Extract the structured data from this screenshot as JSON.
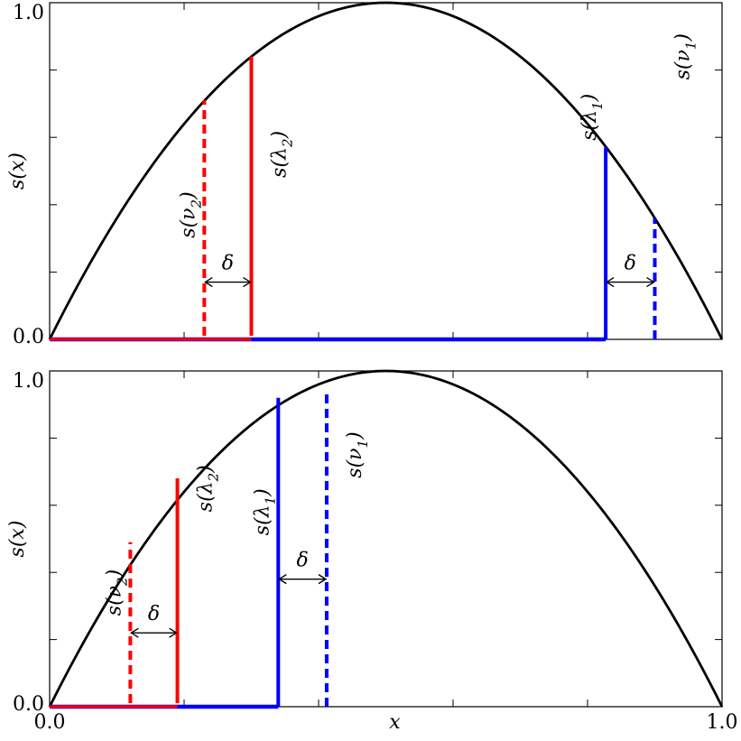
{
  "chart_data": [
    {
      "type": "line",
      "panel": "top",
      "ylabel": "s(x)",
      "xlim": [
        0.0,
        1.0
      ],
      "ylim": [
        0.0,
        1.0
      ],
      "y_tick_labels": [
        "0.0",
        "1.0"
      ],
      "curve": {
        "name": "",
        "function": "4x(1-x)",
        "color": "#000000"
      },
      "segments": [
        {
          "name": "s(λ2)",
          "color": "#ff0000",
          "style": "solid",
          "x": 0.3,
          "height": 0.84
        },
        {
          "name": "s(ν2)",
          "color": "#ff0000",
          "style": "dashed",
          "x": 0.23,
          "height": 0.71
        },
        {
          "name": "s(λ1)",
          "color": "#0000ff",
          "style": "solid",
          "x": 0.827,
          "height": 0.57
        },
        {
          "name": "s(ν1)",
          "color": "#0000ff",
          "style": "dashed",
          "x": 0.9,
          "height": 0.36
        }
      ],
      "baselines": [
        {
          "color": "#ff0000",
          "from": 0.0,
          "to": 0.3
        },
        {
          "color": "#0000ff",
          "from": 0.0,
          "to": 0.827
        }
      ],
      "annotations": [
        {
          "text": "s(λ2)",
          "x": 0.3
        },
        {
          "text": "s(ν2)",
          "x": 0.23
        },
        {
          "text": "s(λ1)",
          "x": 0.827
        },
        {
          "text": "s(ν1)",
          "x": 0.9
        },
        {
          "text": "δ",
          "between": [
            "s(ν2)",
            "s(λ2)"
          ]
        },
        {
          "text": "δ",
          "between": [
            "s(λ1)",
            "s(ν1)"
          ]
        }
      ]
    },
    {
      "type": "line",
      "panel": "bottom",
      "ylabel": "s(x)",
      "xlabel": "x",
      "xlim": [
        0.0,
        1.0
      ],
      "ylim": [
        0.0,
        1.0
      ],
      "x_tick_labels": [
        "0.0",
        "1.0"
      ],
      "y_tick_labels": [
        "0.0",
        "1.0"
      ],
      "curve": {
        "name": "",
        "function": "4x(1-x)",
        "color": "#000000"
      },
      "segments": [
        {
          "name": "s(λ2)",
          "color": "#ff0000",
          "style": "solid",
          "x": 0.19,
          "height": 0.68
        },
        {
          "name": "s(ν2)",
          "color": "#ff0000",
          "style": "dashed",
          "x": 0.12,
          "height": 0.49
        },
        {
          "name": "s(λ1)",
          "color": "#0000ff",
          "style": "solid",
          "x": 0.34,
          "height": 0.92
        },
        {
          "name": "s(ν1)",
          "color": "#0000ff",
          "style": "dashed",
          "x": 0.412,
          "height": 0.94
        }
      ],
      "baselines": [
        {
          "color": "#ff0000",
          "from": 0.0,
          "to": 0.19
        },
        {
          "color": "#0000ff",
          "from": 0.0,
          "to": 0.34
        }
      ],
      "annotations": [
        {
          "text": "s(λ2)",
          "x": 0.19
        },
        {
          "text": "s(ν2)",
          "x": 0.12
        },
        {
          "text": "s(λ1)",
          "x": 0.34
        },
        {
          "text": "s(ν1)",
          "x": 0.412
        },
        {
          "text": "δ",
          "between": [
            "s(ν2)",
            "s(λ2)"
          ]
        },
        {
          "text": "δ",
          "between": [
            "s(λ1)",
            "s(ν1)"
          ]
        }
      ]
    }
  ]
}
